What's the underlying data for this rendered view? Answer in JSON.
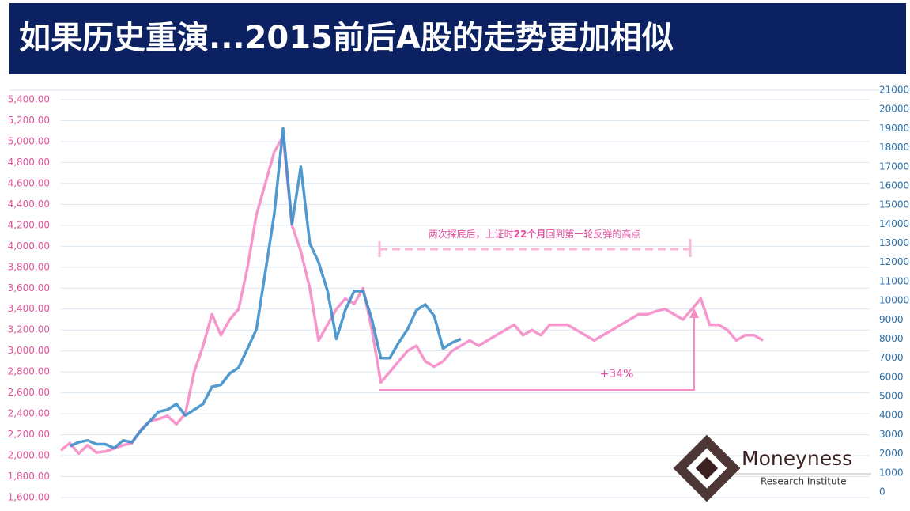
{
  "chart_data": {
    "type": "line",
    "title": "如果历史重演...2015前后A股的走势更加相似",
    "categories": [
      null,
      null,
      null,
      null,
      null,
      null,
      null,
      null,
      null,
      null,
      null,
      null,
      null,
      null,
      null,
      null,
      null,
      null,
      null,
      null,
      null,
      null,
      null,
      null,
      null,
      null,
      null,
      null,
      null,
      null,
      null,
      null,
      null,
      null,
      null,
      null,
      null,
      null,
      null,
      null,
      null,
      null,
      null,
      null,
      null,
      null,
      null,
      null,
      null,
      null,
      null,
      null,
      null,
      null,
      null,
      null,
      null,
      null,
      null,
      null,
      null,
      null,
      null,
      null,
      null,
      null,
      null,
      null,
      null,
      null,
      null,
      null,
      null,
      null,
      null,
      null,
      null,
      null,
      null,
      null,
      null,
      null,
      null,
      null,
      null,
      null,
      null,
      null,
      null,
      null,
      null,
      null
    ],
    "series": [
      {
        "color": "#f48cc6",
        "values": [
          2050,
          2120,
          2020,
          2100,
          2030,
          2040,
          2070,
          2100,
          2120,
          2250,
          2330,
          2350,
          2380,
          2300,
          2400,
          2800,
          3050,
          3350,
          3150,
          3300,
          3400,
          3800,
          4300,
          4600,
          4900,
          5050,
          4200,
          3950,
          3600,
          3100,
          3250,
          3400,
          3500,
          3450,
          3600,
          3200,
          2700,
          2800,
          2900,
          3000,
          3050,
          2900,
          2850,
          2900,
          3000,
          3050,
          3100,
          3050,
          3100,
          3150,
          3200,
          3250,
          3150,
          3200,
          3150,
          3250,
          3250,
          3250,
          3200,
          3150,
          3100,
          3150,
          3200,
          3250,
          3300,
          3350,
          3350,
          3380,
          3400,
          3350,
          3300,
          3400,
          3500,
          3250,
          3250,
          3200,
          3100,
          3150,
          3150,
          3100,
          null,
          null,
          null,
          null,
          null,
          null,
          null,
          null,
          null,
          null,
          null,
          null
        ]
      },
      {
        "color": "#3d8fca",
        "axis": "y2",
        "values": [
          null,
          2400,
          2600,
          2700,
          2500,
          2500,
          2300,
          2700,
          2600,
          3200,
          3700,
          4200,
          4300,
          4600,
          4000,
          4300,
          4600,
          5500,
          5600,
          6200,
          6500,
          7500,
          8500,
          11500,
          14500,
          19000,
          14000,
          17000,
          13000,
          12000,
          10500,
          8000,
          9500,
          10500,
          10500,
          9000,
          7000,
          7000,
          7800,
          8500,
          9500,
          9800,
          9200,
          7500,
          7800,
          8000,
          null,
          null,
          null,
          null,
          null,
          null,
          null,
          null,
          null,
          null,
          null,
          null,
          null,
          null,
          null,
          null,
          null,
          null,
          null,
          null,
          null,
          null,
          null,
          null,
          null,
          null,
          null,
          null,
          null,
          null,
          null,
          null,
          null,
          null,
          null,
          null,
          null,
          null,
          null,
          null,
          null,
          null,
          null,
          null,
          null,
          null
        ]
      }
    ],
    "ylim": [
      1600,
      5400
    ],
    "yticks": [
      {
        "value": 1600,
        "label": "1,600.00"
      },
      {
        "value": 1800,
        "label": "1,800.00"
      },
      {
        "value": 2000,
        "label": "2,000.00"
      },
      {
        "value": 2200,
        "label": "2,200.00"
      },
      {
        "value": 2400,
        "label": "2,400.00"
      },
      {
        "value": 2600,
        "label": "2,600.00"
      },
      {
        "value": 2800,
        "label": "2,800.00"
      },
      {
        "value": 3000,
        "label": "3,000.00"
      },
      {
        "value": 3200,
        "label": "3,200.00"
      },
      {
        "value": 3400,
        "label": "3,400.00"
      },
      {
        "value": 3600,
        "label": "3,600.00"
      },
      {
        "value": 3800,
        "label": "3,800.00"
      },
      {
        "value": 4000,
        "label": "4,000.00"
      },
      {
        "value": 4200,
        "label": "4,200.00"
      },
      {
        "value": 4400,
        "label": "4,400.00"
      },
      {
        "value": 4600,
        "label": "4,600.00"
      },
      {
        "value": 4800,
        "label": "4,800.00"
      },
      {
        "value": 5000,
        "label": "5,000.00"
      },
      {
        "value": 5200,
        "label": "5,200.00"
      },
      {
        "value": 5400,
        "label": "5,400.00"
      }
    ],
    "y2lim": [
      0,
      21000
    ],
    "y2ticks": [
      0,
      1000,
      2000,
      3000,
      4000,
      5000,
      6000,
      7000,
      8000,
      9000,
      10000,
      11000,
      12000,
      13000,
      14000,
      15000,
      16000,
      17000,
      18000,
      19000,
      20000,
      21000
    ],
    "grid": true,
    "annotations": [
      {
        "parts": [
          "两次探底后，上证时",
          "22个月",
          "回到第一轮反弹的高点"
        ]
      },
      {
        "text": "+34%"
      }
    ],
    "logo": {
      "name": "Moneyness",
      "subtitle": "Research Institute"
    }
  }
}
